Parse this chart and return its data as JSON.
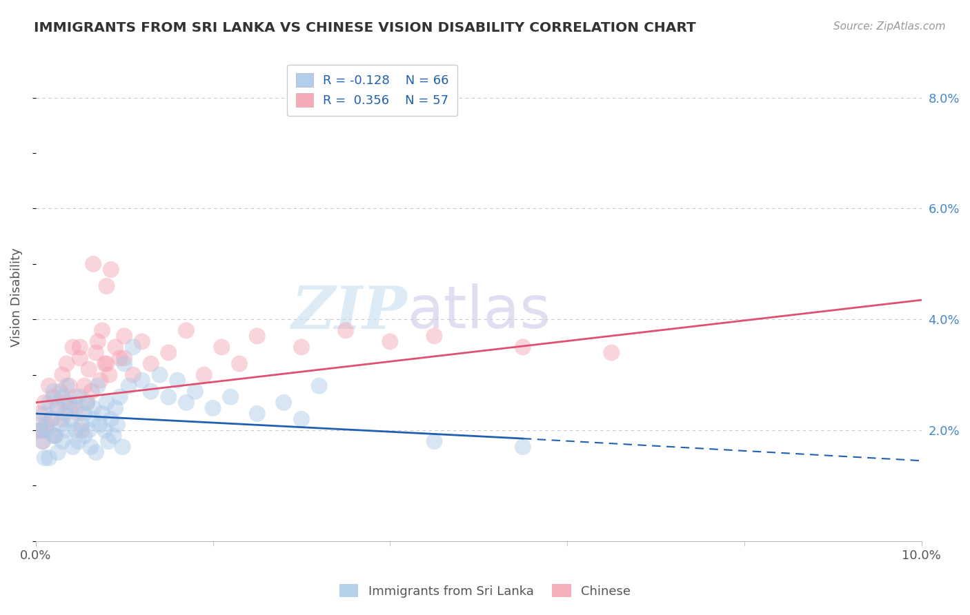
{
  "title": "IMMIGRANTS FROM SRI LANKA VS CHINESE VISION DISABILITY CORRELATION CHART",
  "source_text": "Source: ZipAtlas.com",
  "ylabel": "Vision Disability",
  "xlim": [
    0.0,
    10.0
  ],
  "ylim": [
    0.0,
    8.8
  ],
  "y_ticks_right": [
    2.0,
    4.0,
    6.0,
    8.0
  ],
  "y_tick_labels_right": [
    "2.0%",
    "4.0%",
    "6.0%",
    "8.0%"
  ],
  "blue_color": "#aac9e8",
  "pink_color": "#f5a0b0",
  "blue_line_color": "#2060b0",
  "pink_line_color": "#e05070",
  "legend_blue_label": "R = -0.128    N = 66",
  "legend_pink_label": "R =  0.356    N = 57",
  "legend_label_blue": "Immigrants from Sri Lanka",
  "legend_label_pink": "Chinese",
  "watermark_zip": "ZIP",
  "watermark_atlas": "atlas",
  "background_color": "#ffffff",
  "grid_color": "#c8c8d0",
  "scatter_size": 300,
  "scatter_alpha": 0.45,
  "blue_trend_x0": 0.0,
  "blue_trend_y0": 2.3,
  "blue_trend_x1": 5.5,
  "blue_trend_y1": 1.85,
  "blue_trend_x2": 10.0,
  "blue_trend_y2": 1.45,
  "pink_trend_x0": 0.0,
  "pink_trend_y0": 2.5,
  "pink_trend_x1": 10.0,
  "pink_trend_y1": 4.35,
  "blue_scatter_x": [
    0.05,
    0.08,
    0.1,
    0.12,
    0.15,
    0.15,
    0.18,
    0.2,
    0.22,
    0.25,
    0.25,
    0.28,
    0.3,
    0.3,
    0.33,
    0.35,
    0.35,
    0.38,
    0.4,
    0.42,
    0.45,
    0.45,
    0.48,
    0.5,
    0.52,
    0.55,
    0.55,
    0.58,
    0.6,
    0.62,
    0.65,
    0.65,
    0.68,
    0.7,
    0.72,
    0.75,
    0.78,
    0.8,
    0.82,
    0.85,
    0.88,
    0.9,
    0.92,
    0.95,
    0.98,
    1.0,
    1.05,
    1.1,
    1.2,
    1.3,
    1.4,
    1.5,
    1.6,
    1.7,
    1.8,
    2.0,
    2.2,
    2.5,
    2.8,
    3.0,
    3.2,
    4.5,
    5.5,
    0.05,
    0.1,
    0.2
  ],
  "blue_scatter_y": [
    2.1,
    1.8,
    2.3,
    2.0,
    2.5,
    1.5,
    2.2,
    2.7,
    1.9,
    2.4,
    1.6,
    2.1,
    2.6,
    1.8,
    2.3,
    2.8,
    2.0,
    2.5,
    2.2,
    1.7,
    2.4,
    2.0,
    1.8,
    2.6,
    2.1,
    2.3,
    1.9,
    2.5,
    2.0,
    1.7,
    2.2,
    2.4,
    1.6,
    2.8,
    2.1,
    2.3,
    2.0,
    2.5,
    1.8,
    2.2,
    1.9,
    2.4,
    2.1,
    2.6,
    1.7,
    3.2,
    2.8,
    3.5,
    2.9,
    2.7,
    3.0,
    2.6,
    2.9,
    2.5,
    2.7,
    2.4,
    2.6,
    2.3,
    2.5,
    2.2,
    2.8,
    1.8,
    1.7,
    2.0,
    1.5,
    1.9
  ],
  "pink_scatter_x": [
    0.05,
    0.08,
    0.1,
    0.12,
    0.15,
    0.18,
    0.2,
    0.22,
    0.25,
    0.28,
    0.3,
    0.3,
    0.33,
    0.35,
    0.38,
    0.4,
    0.42,
    0.45,
    0.48,
    0.5,
    0.52,
    0.55,
    0.58,
    0.6,
    0.63,
    0.65,
    0.68,
    0.7,
    0.73,
    0.75,
    0.78,
    0.8,
    0.83,
    0.85,
    0.9,
    0.95,
    1.0,
    1.1,
    1.2,
    1.3,
    1.5,
    1.7,
    1.9,
    2.1,
    2.3,
    2.5,
    3.0,
    3.5,
    4.0,
    4.5,
    5.5,
    6.5,
    0.05,
    0.08,
    0.5,
    0.8,
    1.0
  ],
  "pink_scatter_y": [
    2.3,
    2.0,
    2.5,
    2.1,
    2.8,
    2.2,
    2.6,
    1.9,
    2.4,
    2.7,
    3.0,
    2.2,
    2.5,
    3.2,
    2.8,
    2.4,
    3.5,
    2.6,
    2.3,
    3.3,
    2.0,
    2.8,
    2.5,
    3.1,
    2.7,
    5.0,
    3.4,
    3.6,
    2.9,
    3.8,
    3.2,
    4.6,
    3.0,
    4.9,
    3.5,
    3.3,
    3.7,
    3.0,
    3.6,
    3.2,
    3.4,
    3.8,
    3.0,
    3.5,
    3.2,
    3.7,
    3.5,
    3.8,
    3.6,
    3.7,
    3.5,
    3.4,
    2.0,
    1.8,
    3.5,
    3.2,
    3.3
  ],
  "bottom_legend_label_blue": "Immigrants from Sri Lanka",
  "bottom_legend_label_pink": "Chinese"
}
